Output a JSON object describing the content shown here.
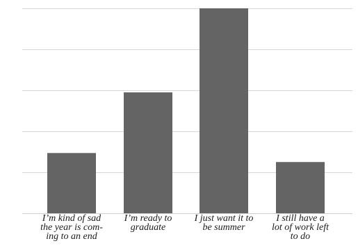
{
  "chart_data": {
    "type": "bar",
    "categories": [
      "I’m kind of sad the year is com-ing to an end",
      "I’m ready to graduate",
      "I just want it to be summer",
      "I still have a lot of work left to do"
    ],
    "category_lines": [
      [
        "I’m kind of sad",
        "the year is com-",
        "ing to an end"
      ],
      [
        "I’m ready to",
        "graduate"
      ],
      [
        "I just want it to",
        "be summer"
      ],
      [
        "I still have a",
        "lot of work left",
        "to do"
      ]
    ],
    "values": [
      14.7,
      29.5,
      50,
      12.5
    ],
    "ylim": [
      0,
      50
    ],
    "gridline_values": [
      10,
      20,
      30,
      40,
      50
    ],
    "grid": true,
    "legend": "none",
    "bar_color": "#646464",
    "grid_color": "#d6d6d6"
  }
}
